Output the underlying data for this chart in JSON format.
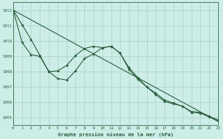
{
  "title": "Graphe pression niveau de la mer (hPa)",
  "bg_color": "#cceee6",
  "grid_color": "#aad4cc",
  "line_color": "#2d6040",
  "xlim": [
    0,
    23
  ],
  "ylim": [
    1004.5,
    1012.5
  ],
  "yticks": [
    1005,
    1006,
    1007,
    1008,
    1009,
    1010,
    1011,
    1012
  ],
  "xticks": [
    0,
    1,
    2,
    3,
    4,
    5,
    6,
    7,
    8,
    9,
    10,
    11,
    12,
    13,
    14,
    15,
    16,
    17,
    18,
    19,
    20,
    21,
    22,
    23
  ],
  "straight_line": [
    1012.0,
    1004.75
  ],
  "series_upper": [
    1012.0,
    1011.05,
    1010.1,
    1009.05,
    1008.0,
    1008.05,
    1008.4,
    1009.05,
    1009.5,
    1009.65,
    1009.55,
    1009.65,
    1009.2,
    1008.25,
    1007.6,
    1007.0,
    1006.6,
    1006.15,
    1005.95,
    1005.75,
    1005.4,
    1005.35,
    1005.1,
    1004.85
  ],
  "series_lower": [
    1012.0,
    1009.9,
    1009.1,
    1009.0,
    1008.0,
    1007.55,
    1007.45,
    1008.05,
    1008.85,
    1009.15,
    1009.55,
    1009.65,
    1009.2,
    1008.15,
    1007.5,
    1007.0,
    1006.5,
    1006.05,
    1005.9,
    1005.75,
    1005.35,
    1005.3,
    1005.05,
    1004.85
  ]
}
